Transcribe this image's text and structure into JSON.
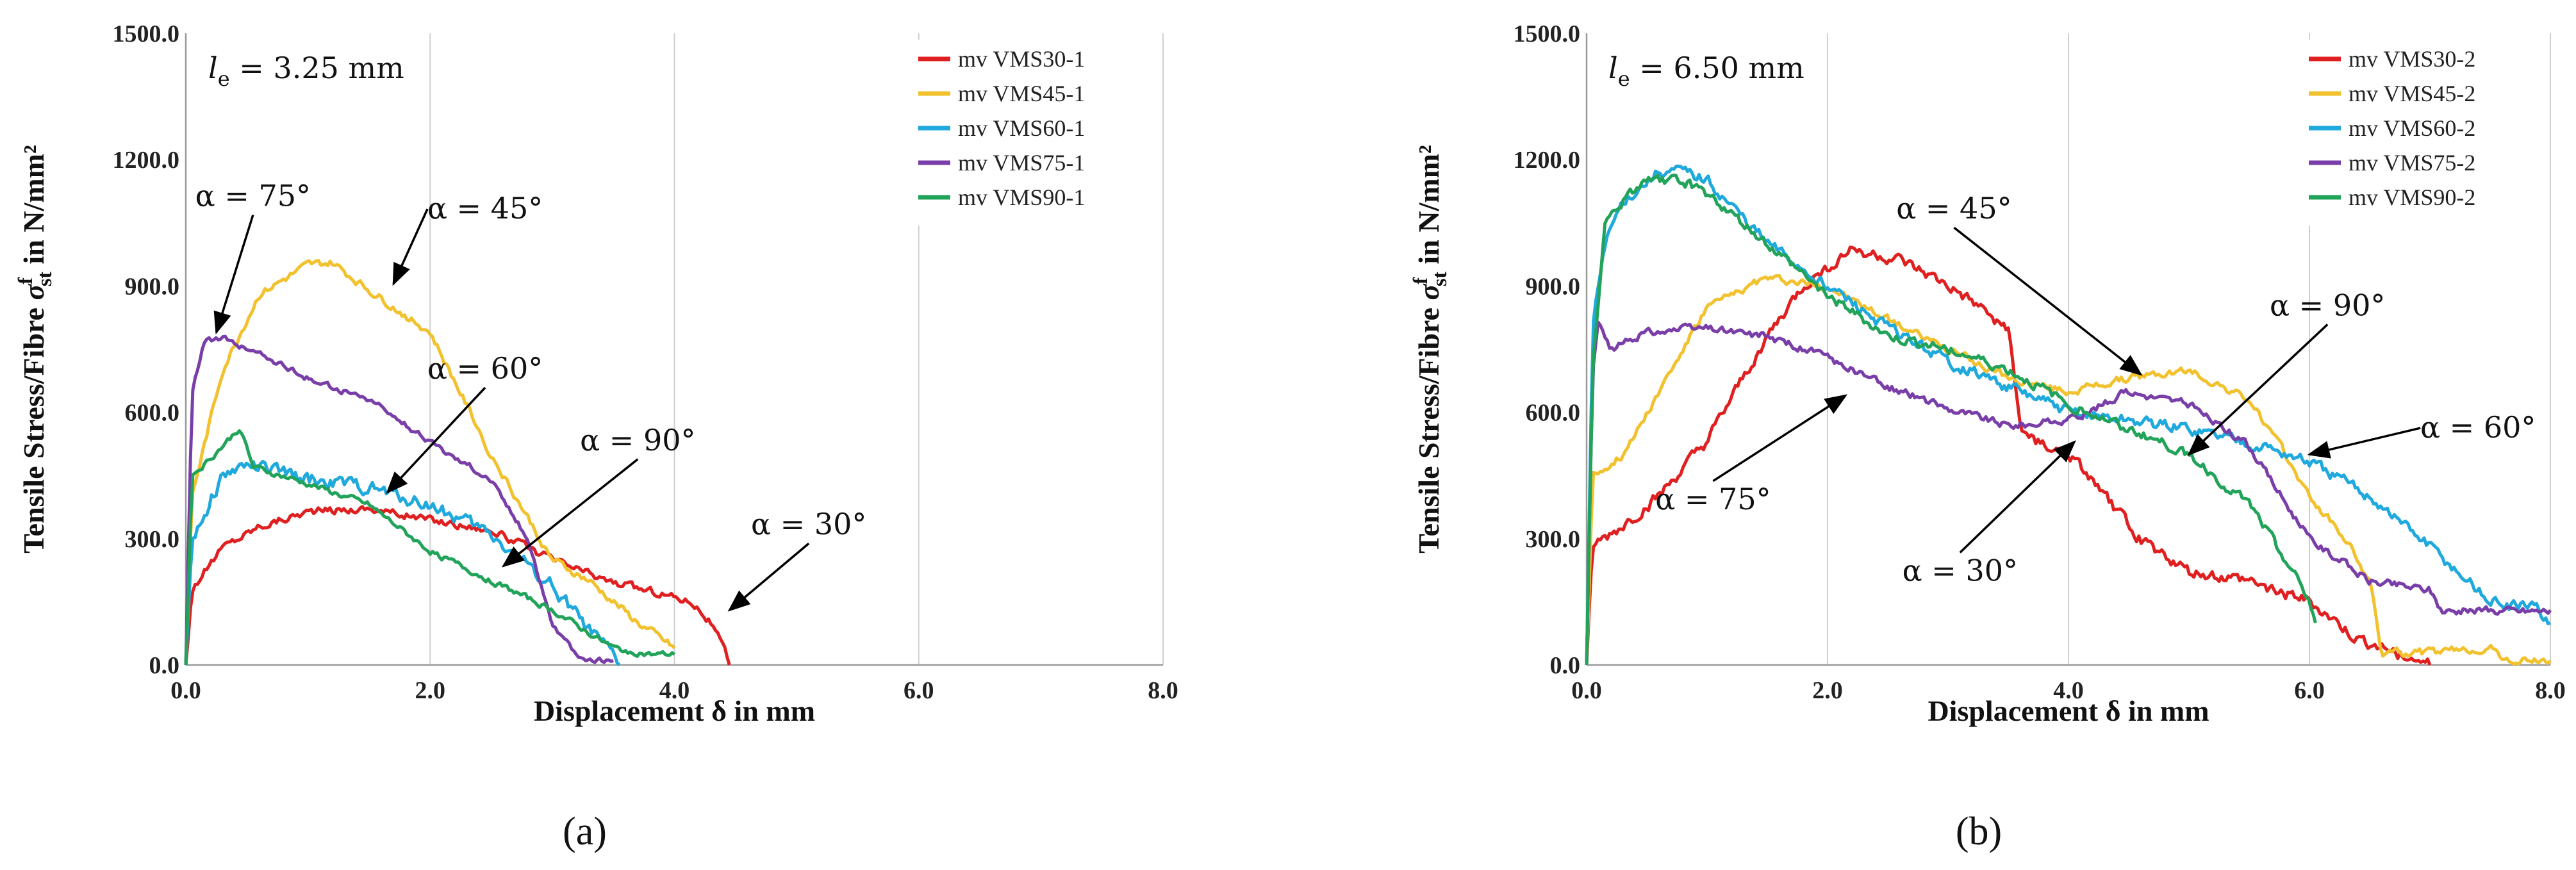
{
  "chart_data": [
    {
      "type": "line",
      "panel_label": "(a)",
      "inset_label": "l_e = 3.25 mm",
      "inset_label_parts": {
        "symbol": "l",
        "subscript": "e",
        "rest": " = 3.25 mm"
      },
      "xlabel": "Displacement δ in mm",
      "ylabel": "Tensile Stress/Fibre σ^f_st in N/mm²",
      "ylabel_parts": {
        "prefix": "Tensile Stress/Fibre ",
        "symbol": "σ",
        "superscript": "f",
        "subscript": "st",
        "suffix": " in N/mm²"
      },
      "xlim": [
        0,
        8
      ],
      "ylim": [
        0,
        1500
      ],
      "x_ticks": [
        "0.0",
        "2.0",
        "4.0",
        "6.0",
        "8.0"
      ],
      "y_ticks": [
        "0.0",
        "300.0",
        "600.0",
        "900.0",
        "1200.0",
        "1500.0"
      ],
      "grid": "vertical",
      "legend_position": "top-right",
      "series": [
        {
          "name": "mv VMS30-1",
          "color": "#e02020",
          "x": [
            0,
            0.05,
            0.3,
            0.6,
            1.0,
            1.5,
            2.0,
            2.5,
            3.0,
            3.5,
            3.9,
            4.15,
            4.3,
            4.4,
            4.45
          ],
          "y": [
            0,
            180,
            280,
            330,
            365,
            372,
            345,
            320,
            250,
            195,
            170,
            150,
            100,
            40,
            0
          ],
          "noise": 8
        },
        {
          "name": "mv VMS45-1",
          "color": "#f2c12e",
          "x": [
            0,
            0.05,
            0.3,
            0.6,
            1.0,
            1.2,
            1.5,
            2.0,
            2.5,
            3.0,
            3.3,
            3.7,
            4.0
          ],
          "y": [
            0,
            400,
            700,
            880,
            950,
            955,
            890,
            790,
            500,
            250,
            200,
            100,
            40
          ],
          "noise": 8
        },
        {
          "name": "mv VMS60-1",
          "color": "#1fa9dc",
          "x": [
            0,
            0.05,
            0.3,
            0.5,
            1.0,
            1.5,
            2.0,
            2.5,
            3.0,
            3.3,
            3.5,
            3.55
          ],
          "y": [
            0,
            300,
            450,
            475,
            440,
            420,
            380,
            310,
            190,
            80,
            20,
            0
          ],
          "noise": 14
        },
        {
          "name": "mv VMS75-1",
          "color": "#7a3ea8",
          "x": [
            0,
            0.05,
            0.15,
            0.3,
            0.6,
            1.0,
            1.5,
            2.0,
            2.5,
            2.8,
            3.0,
            3.2,
            3.35,
            3.5
          ],
          "y": [
            0,
            650,
            770,
            775,
            740,
            680,
            630,
            530,
            440,
            300,
            100,
            20,
            10,
            10
          ],
          "noise": 6
        },
        {
          "name": "mv VMS90-1",
          "color": "#22a35a",
          "x": [
            0,
            0.05,
            0.2,
            0.45,
            0.55,
            1.0,
            1.5,
            2.0,
            2.5,
            3.0,
            3.5,
            3.8,
            4.0
          ],
          "y": [
            0,
            450,
            490,
            565,
            470,
            430,
            380,
            270,
            200,
            130,
            40,
            25,
            25
          ],
          "noise": 6
        }
      ],
      "annotations": [
        {
          "text": "α = 75°",
          "x": 0.55,
          "y": 1090,
          "arrow_to": [
            0.25,
            790
          ]
        },
        {
          "text": "α = 45°",
          "x": 2.45,
          "y": 1060,
          "arrow_to": [
            1.7,
            905
          ]
        },
        {
          "text": "α = 60°",
          "x": 2.45,
          "y": 680,
          "arrow_to": [
            1.65,
            410
          ]
        },
        {
          "text": "α = 90°",
          "x": 3.7,
          "y": 510,
          "arrow_to": [
            2.6,
            235
          ]
        },
        {
          "text": "α = 30°",
          "x": 5.1,
          "y": 310,
          "arrow_to": [
            4.45,
            130
          ]
        }
      ]
    },
    {
      "type": "line",
      "panel_label": "(b)",
      "inset_label": "l_e = 6.50 mm",
      "inset_label_parts": {
        "symbol": "l",
        "subscript": "e",
        "rest": " = 6.50 mm"
      },
      "xlabel": "Displacement δ in mm",
      "ylabel": "Tensile Stress/Fibre σ^f_st in N/mm²",
      "ylabel_parts": {
        "prefix": "Tensile Stress/Fibre ",
        "symbol": "σ",
        "superscript": "f",
        "subscript": "st",
        "suffix": " in N/mm²"
      },
      "xlim": [
        0,
        8
      ],
      "ylim": [
        0,
        1500
      ],
      "x_ticks": [
        "0.0",
        "2.0",
        "4.0",
        "6.0",
        "8.0"
      ],
      "y_ticks": [
        "0.0",
        "300.0",
        "600.0",
        "900.0",
        "1200.0",
        "1500.0"
      ],
      "grid": "vertical",
      "legend_position": "top-right",
      "series": [
        {
          "name": "mv VMS30-2",
          "color": "#e02020",
          "x": [
            0,
            0.05,
            0.3,
            0.6,
            1.0,
            1.5,
            1.8,
            2.2,
            2.6,
            3.0,
            3.5,
            3.6,
            3.8,
            4.0,
            4.3,
            4.6,
            5.0,
            5.5,
            6.0,
            6.4,
            6.8,
            7.0
          ],
          "y": [
            0,
            280,
            330,
            400,
            530,
            780,
            900,
            990,
            960,
            900,
            800,
            560,
            520,
            500,
            400,
            300,
            220,
            200,
            150,
            60,
            20,
            0
          ],
          "noise": 12
        },
        {
          "name": "mv VMS45-2",
          "color": "#f2c12e",
          "x": [
            0,
            0.05,
            0.3,
            0.6,
            1.0,
            1.5,
            2.0,
            2.5,
            3.0,
            3.5,
            4.0,
            4.5,
            5.0,
            5.5,
            5.8,
            6.0,
            6.3,
            6.5,
            6.6,
            6.7,
            7.0,
            7.5,
            7.65,
            8.0
          ],
          "y": [
            0,
            450,
            500,
            650,
            850,
            920,
            900,
            820,
            750,
            680,
            650,
            680,
            700,
            630,
            500,
            400,
            300,
            200,
            30,
            30,
            30,
            40,
            10,
            10
          ],
          "noise": 8
        },
        {
          "name": "mv VMS60-2",
          "color": "#1fa9dc",
          "x": [
            0,
            0.05,
            0.15,
            0.3,
            0.6,
            0.8,
            1.0,
            1.5,
            2.0,
            2.5,
            3.0,
            3.5,
            4.0,
            4.5,
            5.0,
            5.5,
            6.0,
            6.5,
            7.0,
            7.5,
            7.9,
            8.0
          ],
          "y": [
            0,
            800,
            1000,
            1100,
            1170,
            1170,
            1150,
            1000,
            900,
            800,
            720,
            660,
            600,
            580,
            560,
            530,
            480,
            400,
            280,
            150,
            130,
            100
          ],
          "noise": 12
        },
        {
          "name": "mv VMS75-2",
          "color": "#7a3ea8",
          "x": [
            0,
            0.05,
            0.1,
            0.15,
            0.2,
            0.5,
            1.0,
            1.5,
            2.0,
            2.5,
            3.0,
            3.5,
            4.0,
            4.5,
            5.0,
            5.5,
            6.0,
            6.5,
            7.0,
            7.1,
            8.0
          ],
          "y": [
            0,
            700,
            820,
            770,
            750,
            790,
            800,
            780,
            730,
            660,
            610,
            570,
            580,
            650,
            620,
            520,
            300,
            200,
            180,
            130,
            130
          ],
          "noise": 8
        },
        {
          "name": "mv VMS90-2",
          "color": "#22a35a",
          "x": [
            0,
            0.05,
            0.15,
            0.3,
            0.5,
            0.8,
            1.0,
            1.5,
            2.0,
            2.5,
            3.0,
            3.5,
            4.0,
            4.5,
            5.0,
            5.5,
            5.8,
            6.0,
            6.05
          ],
          "y": [
            0,
            700,
            1050,
            1100,
            1150,
            1150,
            1120,
            1000,
            880,
            780,
            750,
            700,
            620,
            560,
            500,
            380,
            250,
            150,
            100
          ],
          "noise": 10
        }
      ],
      "annotations": [
        {
          "text": "α = 45°",
          "x": 3.05,
          "y": 1060,
          "arrow_to": [
            4.6,
            690
          ]
        },
        {
          "text": "α = 90°",
          "x": 6.15,
          "y": 830,
          "arrow_to": [
            5.0,
            500
          ]
        },
        {
          "text": "α = 60°",
          "x": 7.4,
          "y": 540,
          "arrow_to": [
            6.0,
            500
          ]
        },
        {
          "text": "α = 75°",
          "x": 1.05,
          "y": 370,
          "arrow_to": [
            2.15,
            640
          ]
        },
        {
          "text": "α = 30°",
          "x": 3.1,
          "y": 200,
          "arrow_to": [
            4.05,
            530
          ]
        }
      ]
    }
  ]
}
